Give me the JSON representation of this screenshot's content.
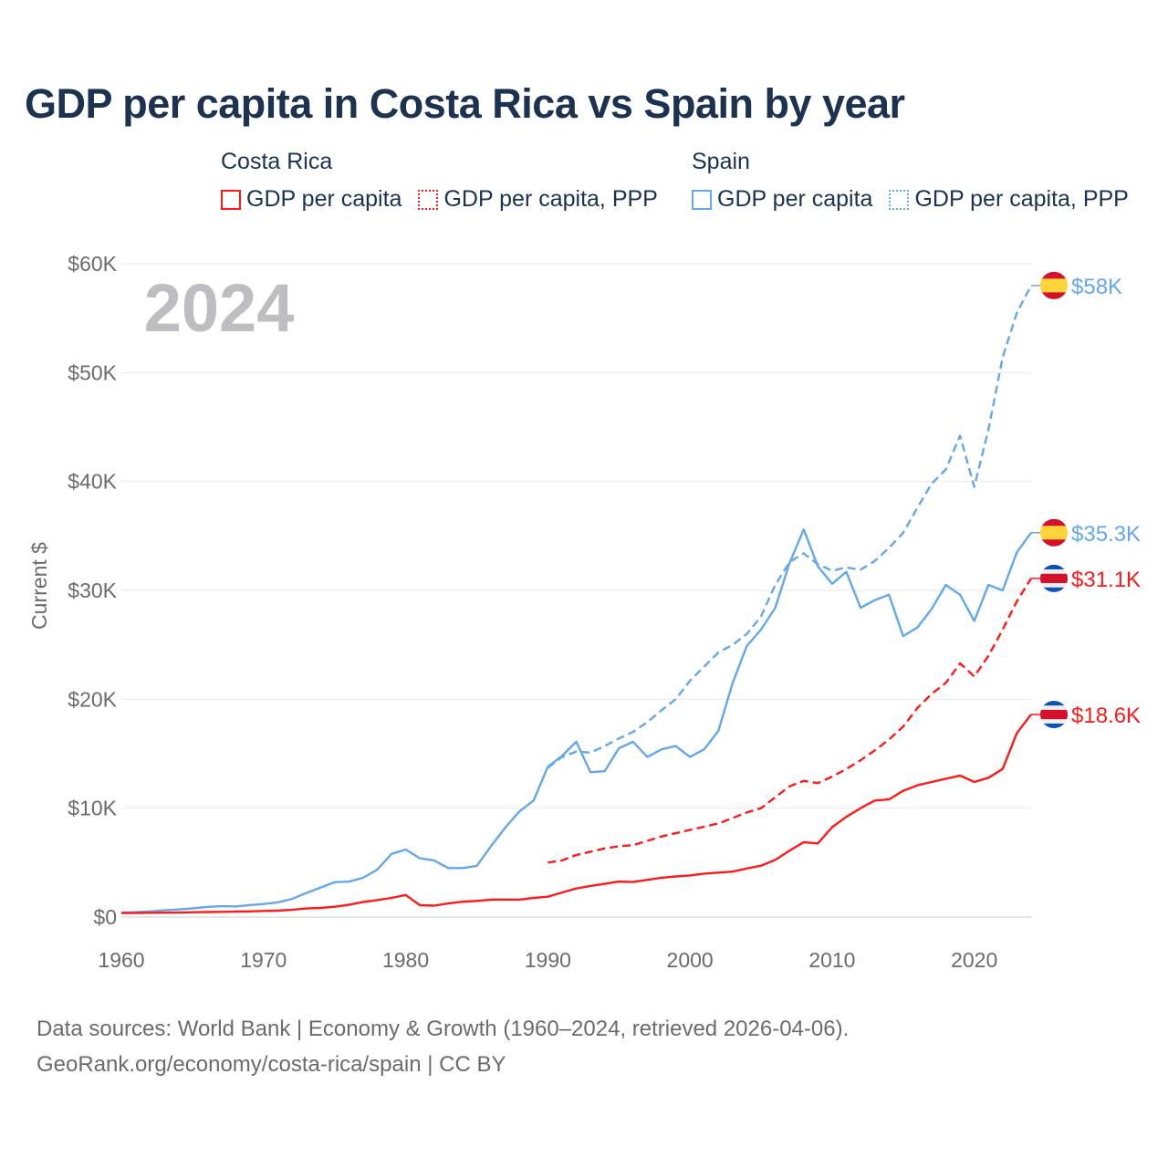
{
  "title": "GDP per capita in Costa Rica vs Spain by year",
  "legend": {
    "groups": [
      {
        "name": "Costa Rica",
        "items": [
          {
            "label": "GDP per capita",
            "color": "#ff1a1a",
            "style": "solid"
          },
          {
            "label": "GDP per capita, PPP",
            "color": "#ff1a1a",
            "style": "dotted"
          }
        ]
      },
      {
        "name": "Spain",
        "items": [
          {
            "label": "GDP per capita",
            "color": "#64a8ea",
            "style": "solid"
          },
          {
            "label": "GDP per capita, PPP",
            "color": "#64a8ea",
            "style": "dotted"
          }
        ]
      }
    ]
  },
  "year_watermark": "2024",
  "footer": {
    "line1": "Data sources: World Bank | Economy & Growth (1960–2024, retrieved 2026-04-06).",
    "line2": "GeoRank.org/economy/costa-rica/spain | CC BY"
  },
  "chart_data": {
    "type": "line",
    "title": "GDP per capita in Costa Rica vs Spain by year",
    "xlabel": "",
    "ylabel": "Current $",
    "xlim": [
      1960,
      2024
    ],
    "ylim": [
      0,
      60000
    ],
    "x_ticks": [
      1960,
      1970,
      1980,
      1990,
      2000,
      2010,
      2020
    ],
    "y_ticks": [
      {
        "v": 0,
        "label": "$0"
      },
      {
        "v": 10000,
        "label": "$10K"
      },
      {
        "v": 20000,
        "label": "$20K"
      },
      {
        "v": 30000,
        "label": "$30K"
      },
      {
        "v": 40000,
        "label": "$40K"
      },
      {
        "v": 50000,
        "label": "$50K"
      },
      {
        "v": 60000,
        "label": "$60K"
      }
    ],
    "grid": true,
    "series": [
      {
        "name": "Spain GDP per capita, PPP",
        "country": "Spain",
        "color": "#64a8ea",
        "dashed": true,
        "start": 1990,
        "end_label": "$58K",
        "values": [
          13700,
          14700,
          15200,
          15100,
          15700,
          16400,
          17000,
          17900,
          19000,
          20000,
          21700,
          23000,
          24300,
          25000,
          26000,
          27600,
          30500,
          32600,
          33400,
          32400,
          31800,
          32100,
          31900,
          32700,
          33900,
          35300,
          37600,
          39800,
          41100,
          44200,
          39500,
          44800,
          51400,
          55500,
          58000
        ]
      },
      {
        "name": "Spain GDP per capita",
        "country": "Spain",
        "color": "#64a8ea",
        "dashed": false,
        "start": 1960,
        "end_label": "$35.3K",
        "values": [
          396,
          449,
          520,
          617,
          692,
          800,
          933,
          1000,
          970,
          1100,
          1200,
          1350,
          1660,
          2200,
          2700,
          3200,
          3250,
          3600,
          4350,
          5800,
          6200,
          5400,
          5200,
          4500,
          4500,
          4700,
          6500,
          8200,
          9700,
          10700,
          13800,
          14800,
          16100,
          13300,
          13400,
          15500,
          16100,
          14700,
          15400,
          15700,
          14700,
          15400,
          17100,
          21500,
          24900,
          26400,
          28400,
          32500,
          35600,
          32200,
          30600,
          31700,
          28400,
          29100,
          29600,
          25800,
          26600,
          28300,
          30500,
          29600,
          27200,
          30500,
          30000,
          33500,
          35300
        ]
      },
      {
        "name": "Costa Rica GDP per capita, PPP",
        "country": "Costa Rica",
        "color": "#ff1a1a",
        "dashed": true,
        "start": 1990,
        "end_label": "$31.1K",
        "values": [
          5000,
          5200,
          5700,
          6000,
          6300,
          6500,
          6600,
          7000,
          7400,
          7700,
          8000,
          8300,
          8600,
          9100,
          9600,
          10000,
          11000,
          12000,
          12500,
          12300,
          12900,
          13600,
          14400,
          15300,
          16300,
          17500,
          19200,
          20500,
          21500,
          23300,
          22100,
          24000,
          26400,
          29000,
          31100
        ]
      },
      {
        "name": "Costa Rica GDP per capita",
        "country": "Costa Rica",
        "color": "#ff1a1a",
        "dashed": false,
        "start": 1960,
        "end_label": "$18.6K",
        "values": [
          380,
          370,
          390,
          400,
          410,
          440,
          460,
          480,
          500,
          520,
          560,
          590,
          660,
          790,
          840,
          950,
          1120,
          1380,
          1560,
          1760,
          2030,
          1090,
          1050,
          1250,
          1410,
          1480,
          1590,
          1610,
          1600,
          1760,
          1870,
          2250,
          2620,
          2860,
          3050,
          3260,
          3220,
          3420,
          3610,
          3730,
          3820,
          3990,
          4080,
          4170,
          4460,
          4720,
          5250,
          6100,
          6870,
          6760,
          8250,
          9200,
          10000,
          10700,
          10800,
          11600,
          12100,
          12400,
          12700,
          13000,
          12400,
          12800,
          13600,
          16900,
          18600
        ]
      }
    ]
  }
}
